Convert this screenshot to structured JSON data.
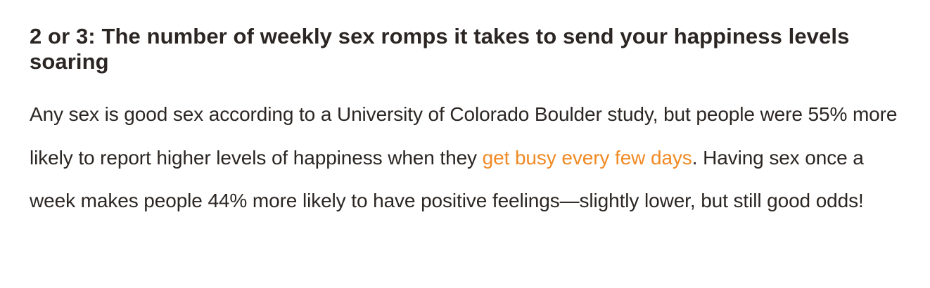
{
  "article": {
    "headline": "2 or 3: The number of weekly sex romps it takes to send your happiness levels soaring",
    "paragraph": {
      "before_link": "Any sex is good sex according to a University of Colorado Boulder study, but people were 55% more likely to report higher levels of happiness when they ",
      "link_text": "get busy every few days",
      "after_link": ". Having sex once a week makes people 44% more likely to have positive feelings—slightly lower, but still good odds!"
    }
  },
  "colors": {
    "text": "#2b2623",
    "link": "#f08a24",
    "background": "#ffffff"
  }
}
